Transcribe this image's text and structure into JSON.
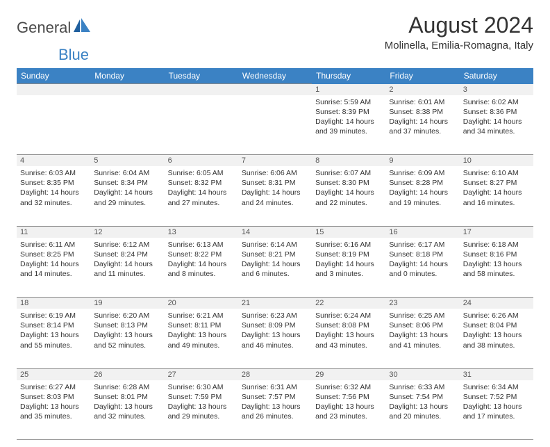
{
  "logo": {
    "text1": "General",
    "text2": "Blue"
  },
  "title": "August 2024",
  "location": "Molinella, Emilia-Romagna, Italy",
  "colors": {
    "header_bg": "#3b82c4",
    "header_text": "#ffffff",
    "shade_bg": "#f1f1f1",
    "border": "#888888",
    "body_text": "#333333"
  },
  "typography": {
    "title_fontsize": 32,
    "location_fontsize": 15,
    "header_fontsize": 12,
    "cell_fontsize": 10.5,
    "daynum_fontsize": 11
  },
  "columns": [
    "Sunday",
    "Monday",
    "Tuesday",
    "Wednesday",
    "Thursday",
    "Friday",
    "Saturday"
  ],
  "weeks": [
    [
      null,
      null,
      null,
      null,
      {
        "n": "1",
        "sr": "5:59 AM",
        "ss": "8:39 PM",
        "dl": "14 hours and 39 minutes."
      },
      {
        "n": "2",
        "sr": "6:01 AM",
        "ss": "8:38 PM",
        "dl": "14 hours and 37 minutes."
      },
      {
        "n": "3",
        "sr": "6:02 AM",
        "ss": "8:36 PM",
        "dl": "14 hours and 34 minutes."
      }
    ],
    [
      {
        "n": "4",
        "sr": "6:03 AM",
        "ss": "8:35 PM",
        "dl": "14 hours and 32 minutes."
      },
      {
        "n": "5",
        "sr": "6:04 AM",
        "ss": "8:34 PM",
        "dl": "14 hours and 29 minutes."
      },
      {
        "n": "6",
        "sr": "6:05 AM",
        "ss": "8:32 PM",
        "dl": "14 hours and 27 minutes."
      },
      {
        "n": "7",
        "sr": "6:06 AM",
        "ss": "8:31 PM",
        "dl": "14 hours and 24 minutes."
      },
      {
        "n": "8",
        "sr": "6:07 AM",
        "ss": "8:30 PM",
        "dl": "14 hours and 22 minutes."
      },
      {
        "n": "9",
        "sr": "6:09 AM",
        "ss": "8:28 PM",
        "dl": "14 hours and 19 minutes."
      },
      {
        "n": "10",
        "sr": "6:10 AM",
        "ss": "8:27 PM",
        "dl": "14 hours and 16 minutes."
      }
    ],
    [
      {
        "n": "11",
        "sr": "6:11 AM",
        "ss": "8:25 PM",
        "dl": "14 hours and 14 minutes."
      },
      {
        "n": "12",
        "sr": "6:12 AM",
        "ss": "8:24 PM",
        "dl": "14 hours and 11 minutes."
      },
      {
        "n": "13",
        "sr": "6:13 AM",
        "ss": "8:22 PM",
        "dl": "14 hours and 8 minutes."
      },
      {
        "n": "14",
        "sr": "6:14 AM",
        "ss": "8:21 PM",
        "dl": "14 hours and 6 minutes."
      },
      {
        "n": "15",
        "sr": "6:16 AM",
        "ss": "8:19 PM",
        "dl": "14 hours and 3 minutes."
      },
      {
        "n": "16",
        "sr": "6:17 AM",
        "ss": "8:18 PM",
        "dl": "14 hours and 0 minutes."
      },
      {
        "n": "17",
        "sr": "6:18 AM",
        "ss": "8:16 PM",
        "dl": "13 hours and 58 minutes."
      }
    ],
    [
      {
        "n": "18",
        "sr": "6:19 AM",
        "ss": "8:14 PM",
        "dl": "13 hours and 55 minutes."
      },
      {
        "n": "19",
        "sr": "6:20 AM",
        "ss": "8:13 PM",
        "dl": "13 hours and 52 minutes."
      },
      {
        "n": "20",
        "sr": "6:21 AM",
        "ss": "8:11 PM",
        "dl": "13 hours and 49 minutes."
      },
      {
        "n": "21",
        "sr": "6:23 AM",
        "ss": "8:09 PM",
        "dl": "13 hours and 46 minutes."
      },
      {
        "n": "22",
        "sr": "6:24 AM",
        "ss": "8:08 PM",
        "dl": "13 hours and 43 minutes."
      },
      {
        "n": "23",
        "sr": "6:25 AM",
        "ss": "8:06 PM",
        "dl": "13 hours and 41 minutes."
      },
      {
        "n": "24",
        "sr": "6:26 AM",
        "ss": "8:04 PM",
        "dl": "13 hours and 38 minutes."
      }
    ],
    [
      {
        "n": "25",
        "sr": "6:27 AM",
        "ss": "8:03 PM",
        "dl": "13 hours and 35 minutes."
      },
      {
        "n": "26",
        "sr": "6:28 AM",
        "ss": "8:01 PM",
        "dl": "13 hours and 32 minutes."
      },
      {
        "n": "27",
        "sr": "6:30 AM",
        "ss": "7:59 PM",
        "dl": "13 hours and 29 minutes."
      },
      {
        "n": "28",
        "sr": "6:31 AM",
        "ss": "7:57 PM",
        "dl": "13 hours and 26 minutes."
      },
      {
        "n": "29",
        "sr": "6:32 AM",
        "ss": "7:56 PM",
        "dl": "13 hours and 23 minutes."
      },
      {
        "n": "30",
        "sr": "6:33 AM",
        "ss": "7:54 PM",
        "dl": "13 hours and 20 minutes."
      },
      {
        "n": "31",
        "sr": "6:34 AM",
        "ss": "7:52 PM",
        "dl": "13 hours and 17 minutes."
      }
    ]
  ],
  "labels": {
    "sunrise": "Sunrise:",
    "sunset": "Sunset:",
    "daylight": "Daylight:"
  }
}
